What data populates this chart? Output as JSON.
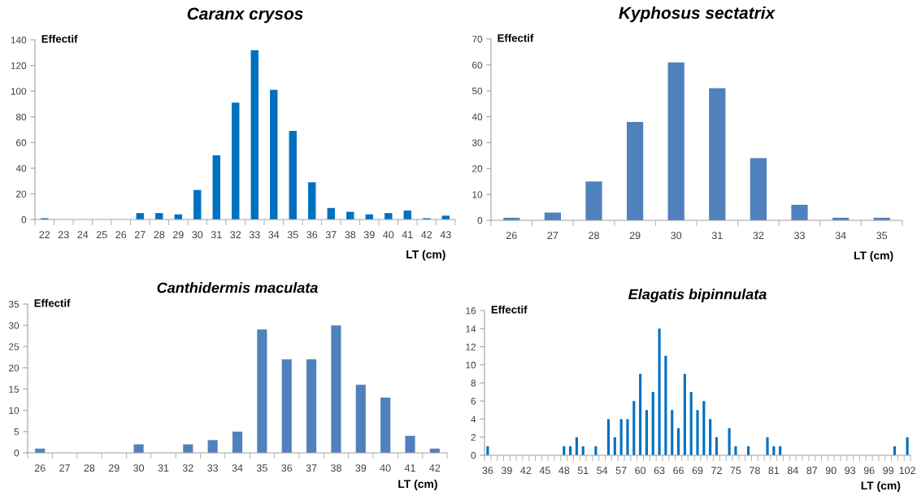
{
  "chart_data": [
    {
      "type": "bar",
      "title": "Caranx crysos",
      "ylabel": "Effectif",
      "xlabel": "LT (cm)",
      "color": "#0070c0",
      "categories": [
        "22",
        "23",
        "24",
        "25",
        "26",
        "27",
        "28",
        "29",
        "30",
        "31",
        "32",
        "33",
        "34",
        "35",
        "36",
        "37",
        "38",
        "39",
        "40",
        "41",
        "42",
        "43"
      ],
      "values": [
        1,
        0,
        0,
        0,
        0,
        5,
        5,
        4,
        23,
        50,
        91,
        132,
        101,
        69,
        29,
        9,
        6,
        4,
        5,
        7,
        1,
        3
      ],
      "ylim": [
        0,
        140
      ],
      "yticks": [
        0,
        20,
        40,
        60,
        80,
        100,
        120,
        140
      ]
    },
    {
      "type": "bar",
      "title": "Kyphosus sectatrix",
      "ylabel": "Effectif",
      "xlabel": "LT (cm)",
      "color": "#4f81bd",
      "categories": [
        "26",
        "27",
        "28",
        "29",
        "30",
        "31",
        "32",
        "33",
        "34",
        "35"
      ],
      "values": [
        1,
        3,
        15,
        38,
        61,
        51,
        24,
        6,
        1,
        1
      ],
      "ylim": [
        0,
        70
      ],
      "yticks": [
        0,
        10,
        20,
        30,
        40,
        50,
        60,
        70
      ]
    },
    {
      "type": "bar",
      "title": "Canthidermis maculata",
      "ylabel": "Effectif",
      "xlabel": "LT (cm)",
      "color": "#4f81bd",
      "categories": [
        "26",
        "27",
        "28",
        "29",
        "30",
        "31",
        "32",
        "33",
        "34",
        "35",
        "36",
        "37",
        "38",
        "39",
        "40",
        "41",
        "42"
      ],
      "values": [
        1,
        0,
        0,
        0,
        2,
        0,
        2,
        3,
        5,
        29,
        22,
        22,
        30,
        16,
        13,
        4,
        1
      ],
      "ylim": [
        0,
        35
      ],
      "yticks": [
        0,
        5,
        10,
        15,
        20,
        25,
        30,
        35
      ]
    },
    {
      "type": "bar",
      "title": "Elagatis bipinnulata",
      "ylabel": "Effectif",
      "xlabel": "LT (cm)",
      "color": "#0070c0",
      "categories": [
        "36",
        null,
        null,
        "39",
        null,
        null,
        "42",
        null,
        null,
        "45",
        null,
        null,
        "48",
        null,
        null,
        "51",
        null,
        null,
        "54",
        null,
        null,
        "57",
        null,
        null,
        "60",
        null,
        null,
        "63",
        null,
        null,
        "66",
        null,
        null,
        "69",
        null,
        null,
        "72",
        null,
        null,
        "75",
        null,
        null,
        "78",
        null,
        null,
        "81",
        null,
        null,
        "84",
        null,
        null,
        "87",
        null,
        null,
        "90",
        null,
        null,
        "93",
        null,
        null,
        "96",
        null,
        null,
        "99",
        null,
        null,
        "102"
      ],
      "values": [
        1,
        0,
        0,
        0,
        0,
        0,
        0,
        0,
        0,
        0,
        0,
        0,
        1,
        1,
        2,
        1,
        0,
        1,
        0,
        4,
        2,
        4,
        4,
        6,
        9,
        5,
        7,
        14,
        11,
        5,
        3,
        9,
        7,
        5,
        6,
        4,
        2,
        0,
        3,
        1,
        0,
        1,
        0,
        0,
        2,
        1,
        1,
        0,
        0,
        0,
        0,
        0,
        0,
        0,
        0,
        0,
        0,
        0,
        0,
        0,
        0,
        0,
        0,
        0,
        1,
        0,
        2
      ],
      "ylim": [
        0,
        16
      ],
      "yticks": [
        0,
        2,
        4,
        6,
        8,
        10,
        12,
        14,
        16
      ]
    }
  ]
}
